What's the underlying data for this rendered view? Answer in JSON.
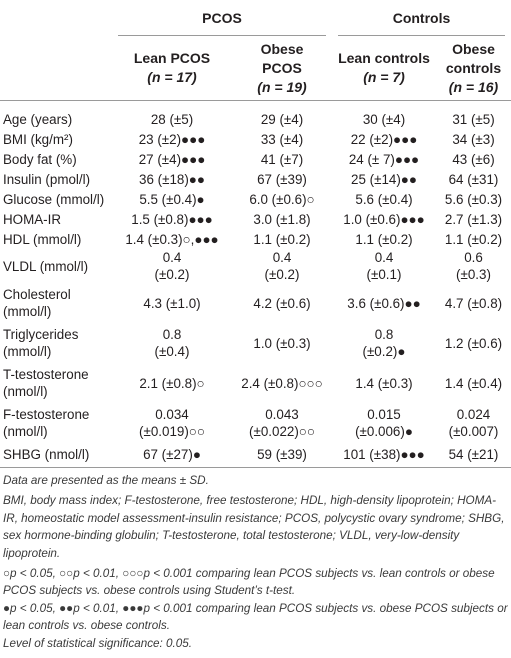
{
  "table": {
    "group_headers": [
      "PCOS",
      "Controls"
    ],
    "sub_headers": [
      {
        "line1": "Lean PCOS",
        "n": "(n = 17)"
      },
      {
        "line1": "Obese",
        "line2": "PCOS",
        "n": "(n = 19)"
      },
      {
        "line1": "Lean controls",
        "n": "(n = 7)"
      },
      {
        "line1": "Obese",
        "line2": "controls",
        "n": "(n = 16)"
      }
    ],
    "rows": [
      {
        "label": "Age (years)",
        "cells": [
          "28 (±5)",
          "29 (±4)",
          "30 (±4)",
          "31 (±5)"
        ]
      },
      {
        "label": "BMI (kg/m²)",
        "cells": [
          "23 (±2)●●●",
          "33 (±4)",
          "22 (±2)●●●",
          "34 (±3)"
        ]
      },
      {
        "label": "Body fat (%)",
        "cells": [
          "27 (±4)●●●",
          "41 (±7)",
          "24 (± 7)●●●",
          "43 (±6)"
        ]
      },
      {
        "label": "Insulin (pmol/l)",
        "cells": [
          "36 (±18)●●",
          "67 (±39)",
          "25 (±14)●●",
          "64 (±31)"
        ]
      },
      {
        "label": "Glucose (mmol/l)",
        "cells": [
          "5.5 (±0.4)●",
          "6.0 (±0.6)○",
          "5.6 (±0.4)",
          "5.6 (±0.3)"
        ]
      },
      {
        "label": "HOMA-IR",
        "cells": [
          "1.5 (±0.8)●●●",
          "3.0 (±1.8)",
          "1.0 (±0.6)●●●",
          "2.7 (±1.3)"
        ]
      },
      {
        "label": "HDL (mmol/l)",
        "cells": [
          "1.4 (±0.3)○,●●●",
          "1.1 (±0.2)",
          "1.1 (±0.2)",
          "1.1 (±0.2)"
        ]
      },
      {
        "label": "VLDL (mmol/l)",
        "cells": [
          "0.4 (±0.2)",
          "0.4 (±0.2)",
          "0.4 (±0.1)",
          "0.6 (±0.3)"
        ]
      },
      {
        "label": "Cholesterol (mmol/l)",
        "cells": [
          "4.3 (±1.0)",
          "4.2 (±0.6)",
          "3.6 (±0.6)●●",
          "4.7 (±0.8)"
        ]
      },
      {
        "label": "Triglycerides (mmol/l)",
        "cells": [
          "0.8 (±0.4)",
          "1.0 (±0.3)",
          "0.8 (±0.2)●",
          "1.2 (±0.6)"
        ]
      },
      {
        "label": "T-testosterone (nmol/l)",
        "cells": [
          "2.1 (±0.8)○",
          "2.4 (±0.8)○○○",
          "1.4 (±0.3)",
          "1.4 (±0.4)"
        ]
      },
      {
        "label": "F-testosterone (nmol/l)",
        "cells": [
          "0.034 (±0.019)○○",
          "0.043 (±0.022)○○",
          "0.015 (±0.006)●",
          "0.024 (±0.007)"
        ]
      },
      {
        "label": "SHBG (nmol/l)",
        "cells": [
          "67 (±27)●",
          "59 (±39)",
          "101 (±38)●●●",
          "54 (±21)"
        ]
      }
    ]
  },
  "notes": [
    "Data are presented as the means ± SD.",
    "BMI, body mass index; F-testosterone, free testosterone; HDL, high-density lipoprotein; HOMA-IR, homeostatic model assessment-insulin resistance; PCOS, polycystic ovary syndrome; SHBG, sex hormone-binding globulin; T-testosterone, total testosterone; VLDL, very-low-density lipoprotein.",
    "○p < 0.05, ○○p < 0.01, ○○○p < 0.001 comparing lean PCOS subjects vs. lean controls or obese PCOS subjects vs. obese controls using Student’s t-test.",
    "●p < 0.05, ●●p < 0.01, ●●●p < 0.001 comparing lean PCOS subjects vs. obese PCOS subjects or lean controls vs. obese controls.",
    "Level of statistical significance: 0.05."
  ]
}
